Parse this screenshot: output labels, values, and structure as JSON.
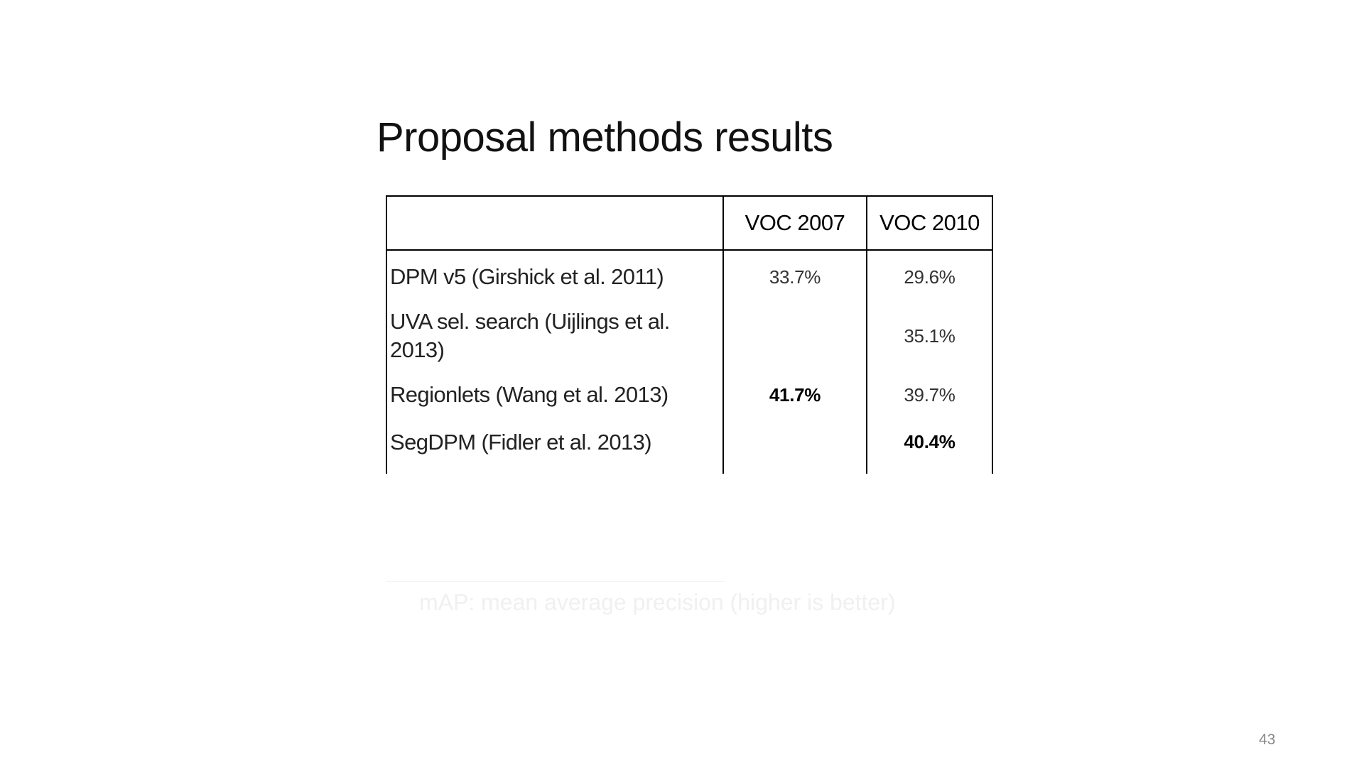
{
  "slide": {
    "title": "Proposal methods results",
    "page_number": "43"
  },
  "table": {
    "headers": [
      "",
      "VOC 2007",
      "VOC 2010"
    ],
    "rows": [
      {
        "method": "DPM v5 (Girshick et al. 2011)",
        "voc2007": "33.7%",
        "voc2010": "29.6%"
      },
      {
        "method": "UVA sel. search (Uijlings et al. 2013)",
        "voc2007": "",
        "voc2010": "35.1%"
      },
      {
        "method": "Regionlets (Wang et al. 2013)",
        "voc2007": "41.7%",
        "voc2010": "39.7%"
      },
      {
        "method": "SegDPM (Fidler et al. 2013)",
        "voc2007": "",
        "voc2010": "40.4%"
      }
    ]
  },
  "footnote": "mAP: mean average precision (higher is better)"
}
